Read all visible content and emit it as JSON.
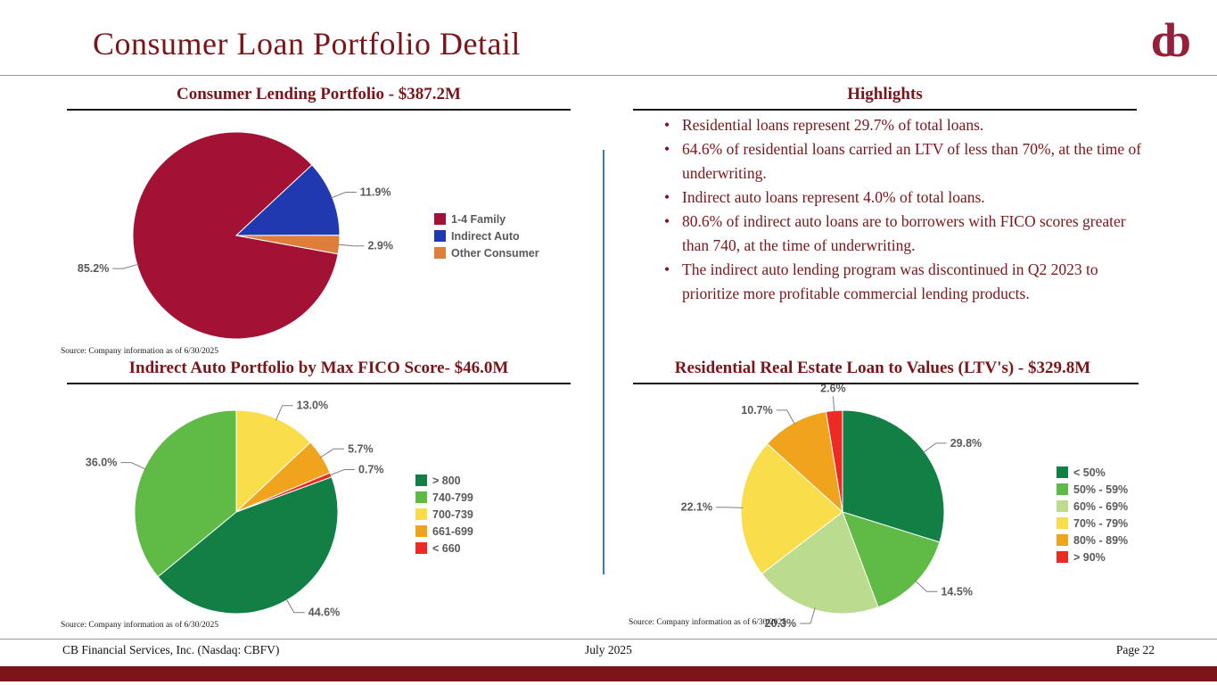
{
  "slide": {
    "title": "Consumer Loan Portfolio Detail",
    "logo_text": "cb"
  },
  "highlights": {
    "heading": "Highlights",
    "bullets": [
      "Residential loans represent 29.7% of total loans.",
      "64.6% of residential loans carried an LTV of less than 70%, at the time of underwriting.",
      "Indirect auto loans represent 4.0% of total loans.",
      "80.6% of indirect auto loans are to borrowers with FICO scores greater than 740, at the time of underwriting.",
      "The indirect auto lending program was discontinued in Q2 2023 to prioritize more profitable commercial lending products."
    ]
  },
  "footer": {
    "left": "CB Financial Services, Inc. (Nasdaq: CBFV)",
    "center": "July 2025",
    "right": "Page 22"
  },
  "colors": {
    "maroon_text": "#7C1519",
    "divider_blue": "#4472C4",
    "label_gray": "#595959"
  },
  "chart_data": [
    {
      "type": "pie",
      "title": "Consumer Lending Portfolio - $387.2M",
      "total_label": "$387.2M",
      "source": "Source: Company information as of 6/30/2025",
      "legend_position": "right",
      "start_angle": 100.3,
      "slices": [
        {
          "label": "1-4 Family",
          "value": 85.2,
          "display": "85.2%",
          "color": "#A31235"
        },
        {
          "label": "Indirect Auto",
          "value": 11.9,
          "display": "11.9%",
          "color": "#2038B0"
        },
        {
          "label": "Other Consumer",
          "value": 2.9,
          "display": "2.9%",
          "color": "#DD7E3B"
        }
      ]
    },
    {
      "type": "pie",
      "title": "Indirect Auto Portfolio by Max FICO Score- $46.0M",
      "total_label": "$46.0M",
      "source": "Source: Company information as of 6/30/2025",
      "legend_position": "right",
      "start_angle": 69.84,
      "slices": [
        {
          "label": "> 800",
          "value": 44.6,
          "display": "44.6%",
          "color": "#128045"
        },
        {
          "label": "740-799",
          "value": 36.0,
          "display": "36.0%",
          "color": "#5FBB46"
        },
        {
          "label": "700-739",
          "value": 13.0,
          "display": "13.0%",
          "color": "#FADD4A"
        },
        {
          "label": "661-699",
          "value": 5.7,
          "display": "5.7%",
          "color": "#F0A41E"
        },
        {
          "label": "< 660",
          "value": 0.7,
          "display": "0.7%",
          "color": "#EE2A24"
        }
      ]
    },
    {
      "type": "pie",
      "title": "Residential Real Estate Loan to Values (LTV's) - $329.8M",
      "total_label": "$329.8M",
      "source": "Source: Company information as of 6/30/2025",
      "legend_position": "right",
      "start_angle": 0,
      "slices": [
        {
          "label": "< 50%",
          "value": 29.8,
          "display": "29.8%",
          "color": "#128045"
        },
        {
          "label": "50% - 59%",
          "value": 14.5,
          "display": "14.5%",
          "color": "#5FBB46"
        },
        {
          "label": "60% - 69%",
          "value": 20.3,
          "display": "20.3%",
          "color": "#BBDC8F"
        },
        {
          "label": "70% - 79%",
          "value": 22.1,
          "display": "22.1%",
          "color": "#FADD4A"
        },
        {
          "label": "80% - 89%",
          "value": 10.7,
          "display": "10.7%",
          "color": "#F0A41E"
        },
        {
          "label": "> 90%",
          "value": 2.6,
          "display": "2.6%",
          "color": "#EE2A24"
        }
      ]
    }
  ]
}
